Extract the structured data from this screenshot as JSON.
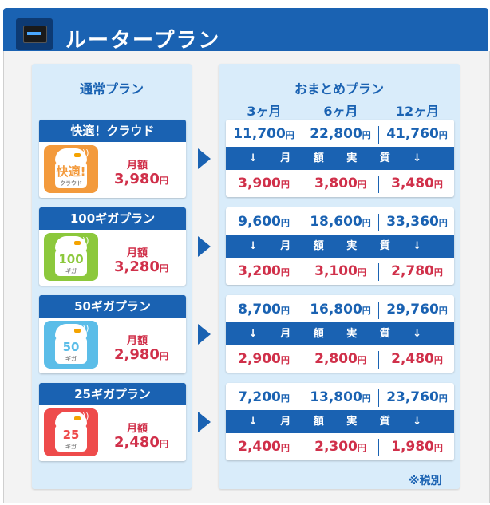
{
  "header": {
    "title": "ルータープラン",
    "device_icon": "router-icon"
  },
  "normal": {
    "title": "通常プラン",
    "monthly_label": "月額",
    "yen": "円"
  },
  "bundle": {
    "title": "おまとめプラン",
    "terms": [
      "3ヶ月",
      "6ヶ月",
      "12ヶ月"
    ],
    "band_label": "↓ 月 額 実 質 ↓"
  },
  "plans": [
    {
      "name": "快適！クラウド",
      "icon_text": "快適!",
      "icon_sub": "クラウド",
      "icon_color": "#f39a3c",
      "monthly": "3,980",
      "totals": [
        "11,700",
        "22,800",
        "41,760"
      ],
      "effective": [
        "3,900",
        "3,800",
        "3,480"
      ]
    },
    {
      "name": "100ギガプラン",
      "icon_text": "100",
      "icon_sub": "ギガ",
      "icon_color": "#8cc83c",
      "monthly": "3,280",
      "totals": [
        "9,600",
        "18,600",
        "33,360"
      ],
      "effective": [
        "3,200",
        "3,100",
        "2,780"
      ]
    },
    {
      "name": "50ギガプラン",
      "icon_text": "50",
      "icon_sub": "ギガ",
      "icon_color": "#5bbde8",
      "monthly": "2,980",
      "totals": [
        "8,700",
        "16,800",
        "29,760"
      ],
      "effective": [
        "2,900",
        "2,800",
        "2,480"
      ]
    },
    {
      "name": "25ギガプラン",
      "icon_text": "25",
      "icon_sub": "ギガ",
      "icon_color": "#ee4b4b",
      "monthly": "2,480",
      "totals": [
        "7,200",
        "13,800",
        "23,760"
      ],
      "effective": [
        "2,400",
        "2,300",
        "1,980"
      ]
    }
  ],
  "tax_note": "※税別"
}
